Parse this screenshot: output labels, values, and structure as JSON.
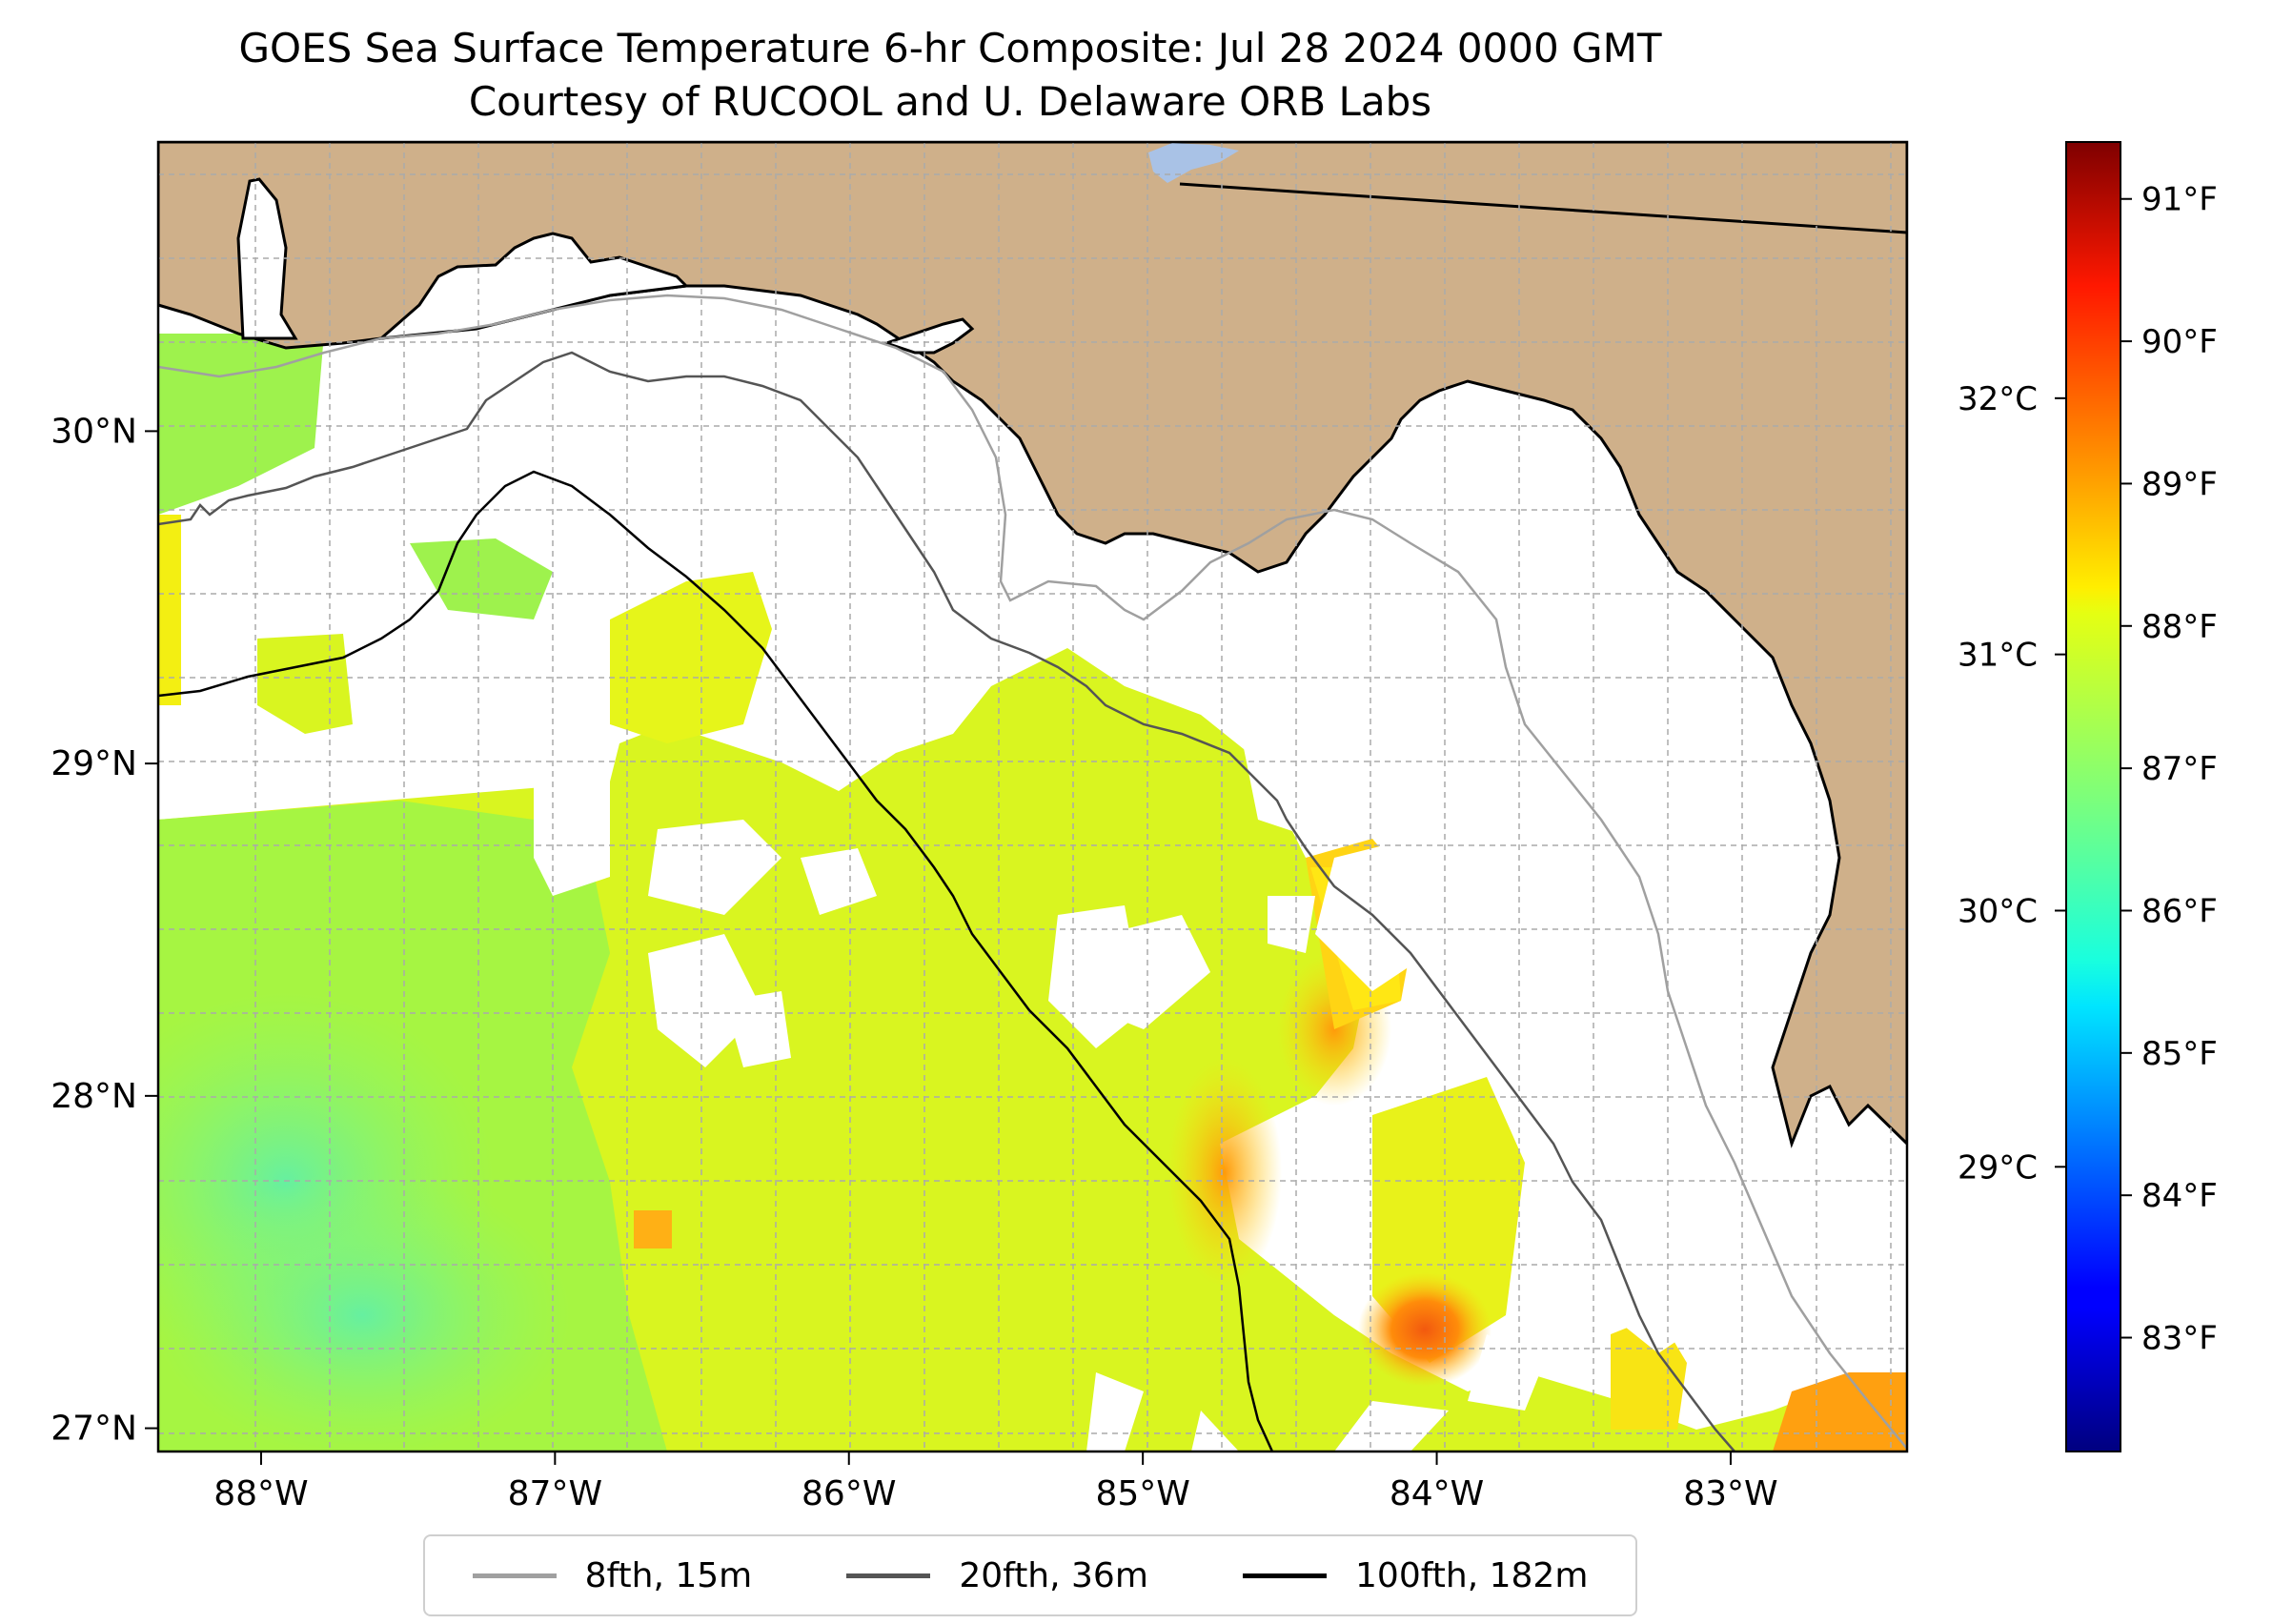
{
  "title": "GOES Sea Surface Temperature 6-hr Composite: Jul 28 2024 0000 GMT",
  "subtitle": "Courtesy of RUCOOL and U. Delaware ORB Labs",
  "map": {
    "lon_range": [
      -88.35,
      -82.4
    ],
    "lat_range": [
      26.93,
      30.87
    ],
    "lon_ticks": [
      {
        "value": -88,
        "label": "88°W"
      },
      {
        "value": -87,
        "label": "87°W"
      },
      {
        "value": -86,
        "label": "86°W"
      },
      {
        "value": -85,
        "label": "85°W"
      },
      {
        "value": -84,
        "label": "84°W"
      },
      {
        "value": -83,
        "label": "83°W"
      }
    ],
    "lat_ticks": [
      {
        "value": 27,
        "label": "27°N"
      },
      {
        "value": 28,
        "label": "28°N"
      },
      {
        "value": 29,
        "label": "29°N"
      },
      {
        "value": 30,
        "label": "30°N"
      }
    ],
    "gridlines": true,
    "colors": {
      "land": "#cfb08a",
      "water": "#ffffff",
      "lake": "#a9c2e6"
    }
  },
  "legend": [
    {
      "label": "8fth, 15m",
      "color": "#a0a0a0"
    },
    {
      "label": "20fth, 36m",
      "color": "#555555"
    },
    {
      "label": "100fth, 182m",
      "color": "#000000"
    }
  ],
  "colorbar": {
    "colormap": "jet",
    "celsius_ticks": [
      {
        "value": 29,
        "label": "29°C"
      },
      {
        "value": 30,
        "label": "30°C"
      },
      {
        "value": 31,
        "label": "31°C"
      },
      {
        "value": 32,
        "label": "32°C"
      }
    ],
    "fahrenheit_ticks": [
      {
        "value": 83,
        "label": "83°F"
      },
      {
        "value": 84,
        "label": "84°F"
      },
      {
        "value": 85,
        "label": "85°F"
      },
      {
        "value": 86,
        "label": "86°F"
      },
      {
        "value": 87,
        "label": "87°F"
      },
      {
        "value": 88,
        "label": "88°F"
      },
      {
        "value": 89,
        "label": "89°F"
      },
      {
        "value": 90,
        "label": "90°F"
      },
      {
        "value": 91,
        "label": "91°F"
      }
    ]
  }
}
